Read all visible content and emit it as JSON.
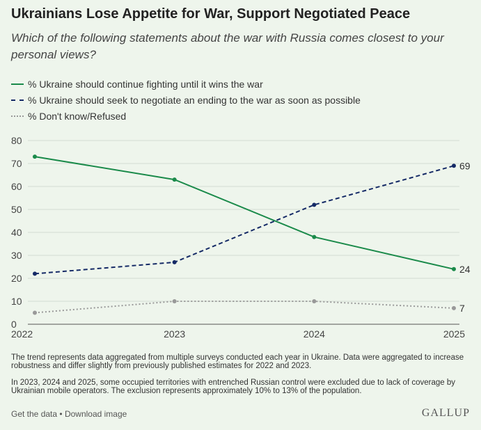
{
  "header": {
    "title": "Ukrainians Lose Appetite for War, Support Negotiated Peace",
    "subtitle": "Which of the following statements about the war with Russia comes closest to your personal views?"
  },
  "legend": [
    "% Ukraine should continue fighting until it wins the war",
    "% Ukraine should seek to negotiate an ending to the war as soon as possible",
    "% Don't know/Refused"
  ],
  "chart_data": {
    "type": "line",
    "x": [
      "2022",
      "2023",
      "2024",
      "2025"
    ],
    "ylim": [
      0,
      80
    ],
    "yticks": [
      "0",
      "10",
      "20",
      "30",
      "40",
      "50",
      "60",
      "70",
      "80"
    ],
    "grid": true,
    "legend_position": "top-left",
    "series": [
      {
        "name": "% Ukraine should continue fighting until it wins the war",
        "values": [
          73,
          63,
          38,
          24
        ],
        "color": "#1a8a4a",
        "style": "solid",
        "end_label": "24"
      },
      {
        "name": "% Ukraine should seek to negotiate an ending to the war as soon as possible",
        "values": [
          22,
          27,
          52,
          69
        ],
        "color": "#152a66",
        "style": "dashed",
        "end_label": "69"
      },
      {
        "name": "% Don't know/Refused",
        "values": [
          5,
          10,
          10,
          7
        ],
        "color": "#999999",
        "style": "dotted",
        "end_label": "7"
      }
    ]
  },
  "footnotes": [
    "The trend represents data aggregated from multiple surveys conducted each year in Ukraine. Data were aggregated to increase robustness and differ slightly from previously published estimates for 2022 and 2023.",
    "In 2023, 2024 and 2025, some occupied territories with entrenched Russian control were excluded due to lack of coverage by Ukrainian mobile operators. The exclusion represents approximately 10% to 13% of the population."
  ],
  "links": {
    "get_data": "Get the data",
    "separator": "•",
    "download": "Download image"
  },
  "brand": "GALLUP"
}
